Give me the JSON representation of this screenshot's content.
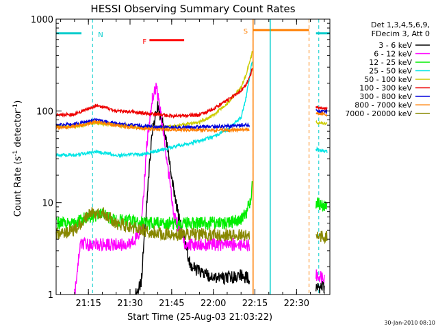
{
  "chart_data": {
    "type": "line",
    "title": "HESSI Observing Summary Count Rates",
    "xlabel": "Start Time (25-Aug-03 21:03:22)",
    "ylabel": "Count Rate (s⁻¹ detector⁻¹)",
    "ylabel_parts": {
      "main": "Count Rate (s",
      "sup1": "-1",
      "mid": " detector",
      "sup2": "-1",
      "end": ")"
    },
    "yscale": "log",
    "ylim": [
      1,
      1000
    ],
    "xlim": [
      "21:03:22",
      "22:42:00"
    ],
    "x_ticks": [
      "21:15",
      "21:30",
      "21:45",
      "22:00",
      "22:15",
      "22:30"
    ],
    "y_ticks": [
      "1",
      "10",
      "100",
      "1000"
    ],
    "footer": "30-Jan-2010 08:10",
    "legend": {
      "header": [
        "Det 1,3,4,5,6,9,",
        "FDecim 3, Att 0"
      ],
      "entries": [
        {
          "label": "3 - 6 keV",
          "color": "#000000"
        },
        {
          "label": "6 - 12 keV",
          "color": "#ff00ff"
        },
        {
          "label": "12 - 25 keV",
          "color": "#00ee00"
        },
        {
          "label": "25 - 50 keV",
          "color": "#00e5e5"
        },
        {
          "label": "50 - 100 keV",
          "color": "#cccc00"
        },
        {
          "label": "100 - 300 keV",
          "color": "#ee0000"
        },
        {
          "label": "300 - 800 keV",
          "color": "#0000dd"
        },
        {
          "label": "800 - 7000 keV",
          "color": "#ff7f00"
        },
        {
          "label": "7000 - 20000 keV",
          "color": "#888800"
        }
      ]
    },
    "flags": [
      {
        "label": "N",
        "color": "#00cccc",
        "segments": [
          [
            "21:03:22",
            "21:12:30"
          ],
          [
            "22:37:00",
            "22:42:00"
          ]
        ],
        "level": 700,
        "markers": [
          "21:16:30",
          "22:38:00"
        ]
      },
      {
        "label": "F",
        "color": "#ff0000",
        "segments": [
          [
            "21:37:00",
            "21:49:30"
          ]
        ],
        "level": 590
      },
      {
        "label": "S",
        "color": "#ff7f00",
        "segments": [
          [
            "22:14:20",
            "22:34:30"
          ]
        ],
        "level": 760,
        "markers": [
          "22:14:20",
          "22:34:30"
        ]
      }
    ],
    "saa_lines": {
      "color": "#00cccc",
      "times": [
        "22:20:30"
      ]
    },
    "data_gaps": [
      [
        "22:14:20",
        "22:36:50"
      ]
    ],
    "series": [
      {
        "name": "3 - 6 keV",
        "color": "#000000",
        "x": [
          "21:32:00",
          "21:34:00",
          "21:36:00",
          "21:38:00",
          "21:40:00",
          "21:42:00",
          "21:44:00",
          "21:46:00",
          "21:48:00",
          "21:52:00",
          "21:58:00",
          "22:04:00",
          "22:10:00",
          "22:13:00",
          "22:37:00",
          "22:40:00"
        ],
        "y": [
          1.0,
          1.3,
          10,
          60,
          110,
          70,
          30,
          12,
          6,
          2,
          1.6,
          1.5,
          1.6,
          1.5,
          1.2,
          1.2
        ]
      },
      {
        "name": "6 - 12 keV",
        "color": "#ff00ff",
        "x": [
          "21:10:00",
          "21:12:00",
          "21:20:00",
          "21:30:00",
          "21:34:00",
          "21:36:00",
          "21:38:00",
          "21:39:30",
          "21:42:00",
          "21:44:00",
          "21:46:00",
          "21:50:00",
          "22:00:00",
          "22:10:00",
          "22:13:00",
          "22:37:00",
          "22:40:00"
        ],
        "y": [
          1.0,
          3.5,
          3.5,
          3.5,
          5,
          40,
          140,
          180,
          60,
          20,
          7,
          3.5,
          3.5,
          3.5,
          3.5,
          1.6,
          1.6
        ]
      },
      {
        "name": "12 - 25 keV",
        "color": "#00ee00",
        "x": [
          "21:03:22",
          "21:10:00",
          "21:15:00",
          "21:20:00",
          "21:25:00",
          "21:35:00",
          "21:45:00",
          "21:55:00",
          "22:05:00",
          "22:10:00",
          "22:12:00",
          "22:13:30",
          "22:14:00",
          "22:37:00",
          "22:41:00"
        ],
        "y": [
          6,
          6,
          7,
          7.5,
          6.5,
          6,
          6,
          6,
          6,
          6.5,
          8,
          11,
          16,
          10,
          9
        ]
      },
      {
        "name": "25 - 50 keV",
        "color": "#00e5e5",
        "x": [
          "21:03:22",
          "21:10:00",
          "21:18:00",
          "21:25:00",
          "21:35:00",
          "21:45:00",
          "21:55:00",
          "22:00:00",
          "22:05:00",
          "22:10:00",
          "22:12:00",
          "22:13:30",
          "22:14:00",
          "22:37:00",
          "22:41:00"
        ],
        "y": [
          33,
          33,
          36,
          33,
          34,
          40,
          47,
          53,
          62,
          85,
          150,
          280,
          350,
          38,
          36
        ]
      },
      {
        "name": "50 - 100 keV",
        "color": "#cccc00",
        "x": [
          "21:03:22",
          "21:10:00",
          "21:18:00",
          "21:25:00",
          "21:35:00",
          "21:45:00",
          "21:55:00",
          "22:00:00",
          "22:05:00",
          "22:10:00",
          "22:12:00",
          "22:13:30",
          "22:14:00",
          "22:37:00",
          "22:41:00"
        ],
        "y": [
          68,
          68,
          74,
          70,
          66,
          67,
          75,
          90,
          120,
          180,
          260,
          380,
          430,
          75,
          72
        ]
      },
      {
        "name": "100 - 300 keV",
        "color": "#ee0000",
        "x": [
          "21:03:22",
          "21:10:00",
          "21:18:00",
          "21:25:00",
          "21:35:00",
          "21:45:00",
          "21:55:00",
          "22:00:00",
          "22:05:00",
          "22:10:00",
          "22:12:00",
          "22:13:30",
          "22:14:00",
          "22:37:00",
          "22:41:00"
        ],
        "y": [
          90,
          92,
          115,
          100,
          95,
          88,
          90,
          105,
          130,
          165,
          200,
          250,
          290,
          110,
          105
        ]
      },
      {
        "name": "300 - 800 keV",
        "color": "#0000dd",
        "x": [
          "21:03:22",
          "21:10:00",
          "21:18:00",
          "21:25:00",
          "21:35:00",
          "21:45:00",
          "21:55:00",
          "22:05:00",
          "22:10:00",
          "22:13:00",
          "22:37:00",
          "22:41:00"
        ],
        "y": [
          70,
          72,
          80,
          73,
          68,
          66,
          67,
          68,
          70,
          70,
          100,
          98
        ]
      },
      {
        "name": "800 - 7000 keV",
        "color": "#ff7f00",
        "x": [
          "21:03:22",
          "21:10:00",
          "21:18:00",
          "21:25:00",
          "21:35:00",
          "21:45:00",
          "21:55:00",
          "22:05:00",
          "22:10:00",
          "22:13:00",
          "22:37:00",
          "22:41:00"
        ],
        "y": [
          66,
          68,
          76,
          70,
          64,
          62,
          62,
          62,
          62,
          62,
          95,
          92
        ]
      },
      {
        "name": "7000 - 20000 keV",
        "color": "#888800",
        "x": [
          "21:03:22",
          "21:10:00",
          "21:15:00",
          "21:20:00",
          "21:25:00",
          "21:35:00",
          "21:45:00",
          "21:55:00",
          "22:05:00",
          "22:10:00",
          "22:13:00",
          "22:37:00",
          "22:41:00"
        ],
        "y": [
          4.5,
          5,
          7.5,
          8,
          6,
          5,
          4.5,
          4.5,
          4.5,
          4.5,
          4.5,
          4.5,
          4.2
        ]
      }
    ]
  }
}
